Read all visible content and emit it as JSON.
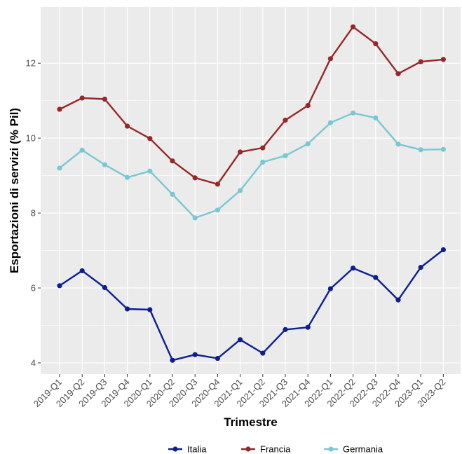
{
  "chart_data": {
    "type": "line",
    "xlabel": "Trimestre",
    "ylabel": "Esportazioni di servizi (% Pil)",
    "categories": [
      "2019-Q1",
      "2019-Q2",
      "2019-Q3",
      "2019-Q4",
      "2020-Q1",
      "2020-Q2",
      "2020-Q3",
      "2020-Q4",
      "2021-Q1",
      "2021-Q2",
      "2021-Q3",
      "2021-Q4",
      "2022-Q1",
      "2022-Q2",
      "2022-Q3",
      "2022-Q4",
      "2023-Q1",
      "2023-Q2"
    ],
    "ylim": [
      3.7,
      13.5
    ],
    "yticks": [
      4,
      6,
      8,
      10,
      12
    ],
    "series": [
      {
        "name": "Italia",
        "color": "#0d1f8f",
        "values": [
          6.06,
          6.46,
          6.01,
          5.44,
          5.42,
          4.07,
          4.22,
          4.12,
          4.62,
          4.26,
          4.89,
          4.95,
          5.98,
          6.53,
          6.28,
          5.68,
          6.55,
          7.02
        ]
      },
      {
        "name": "Francia",
        "color": "#952828",
        "values": [
          10.77,
          11.07,
          11.04,
          10.32,
          9.99,
          9.39,
          8.94,
          8.77,
          9.63,
          9.74,
          10.48,
          10.87,
          12.12,
          12.97,
          12.52,
          11.72,
          12.04,
          12.1
        ]
      },
      {
        "name": "Germania",
        "color": "#79c8d3",
        "values": [
          9.2,
          9.68,
          9.29,
          8.95,
          9.12,
          8.5,
          7.87,
          8.08,
          8.6,
          9.36,
          9.53,
          9.85,
          10.41,
          10.67,
          10.54,
          9.84,
          9.69,
          9.7
        ]
      }
    ],
    "legend_position": "bottom",
    "grid": true
  }
}
